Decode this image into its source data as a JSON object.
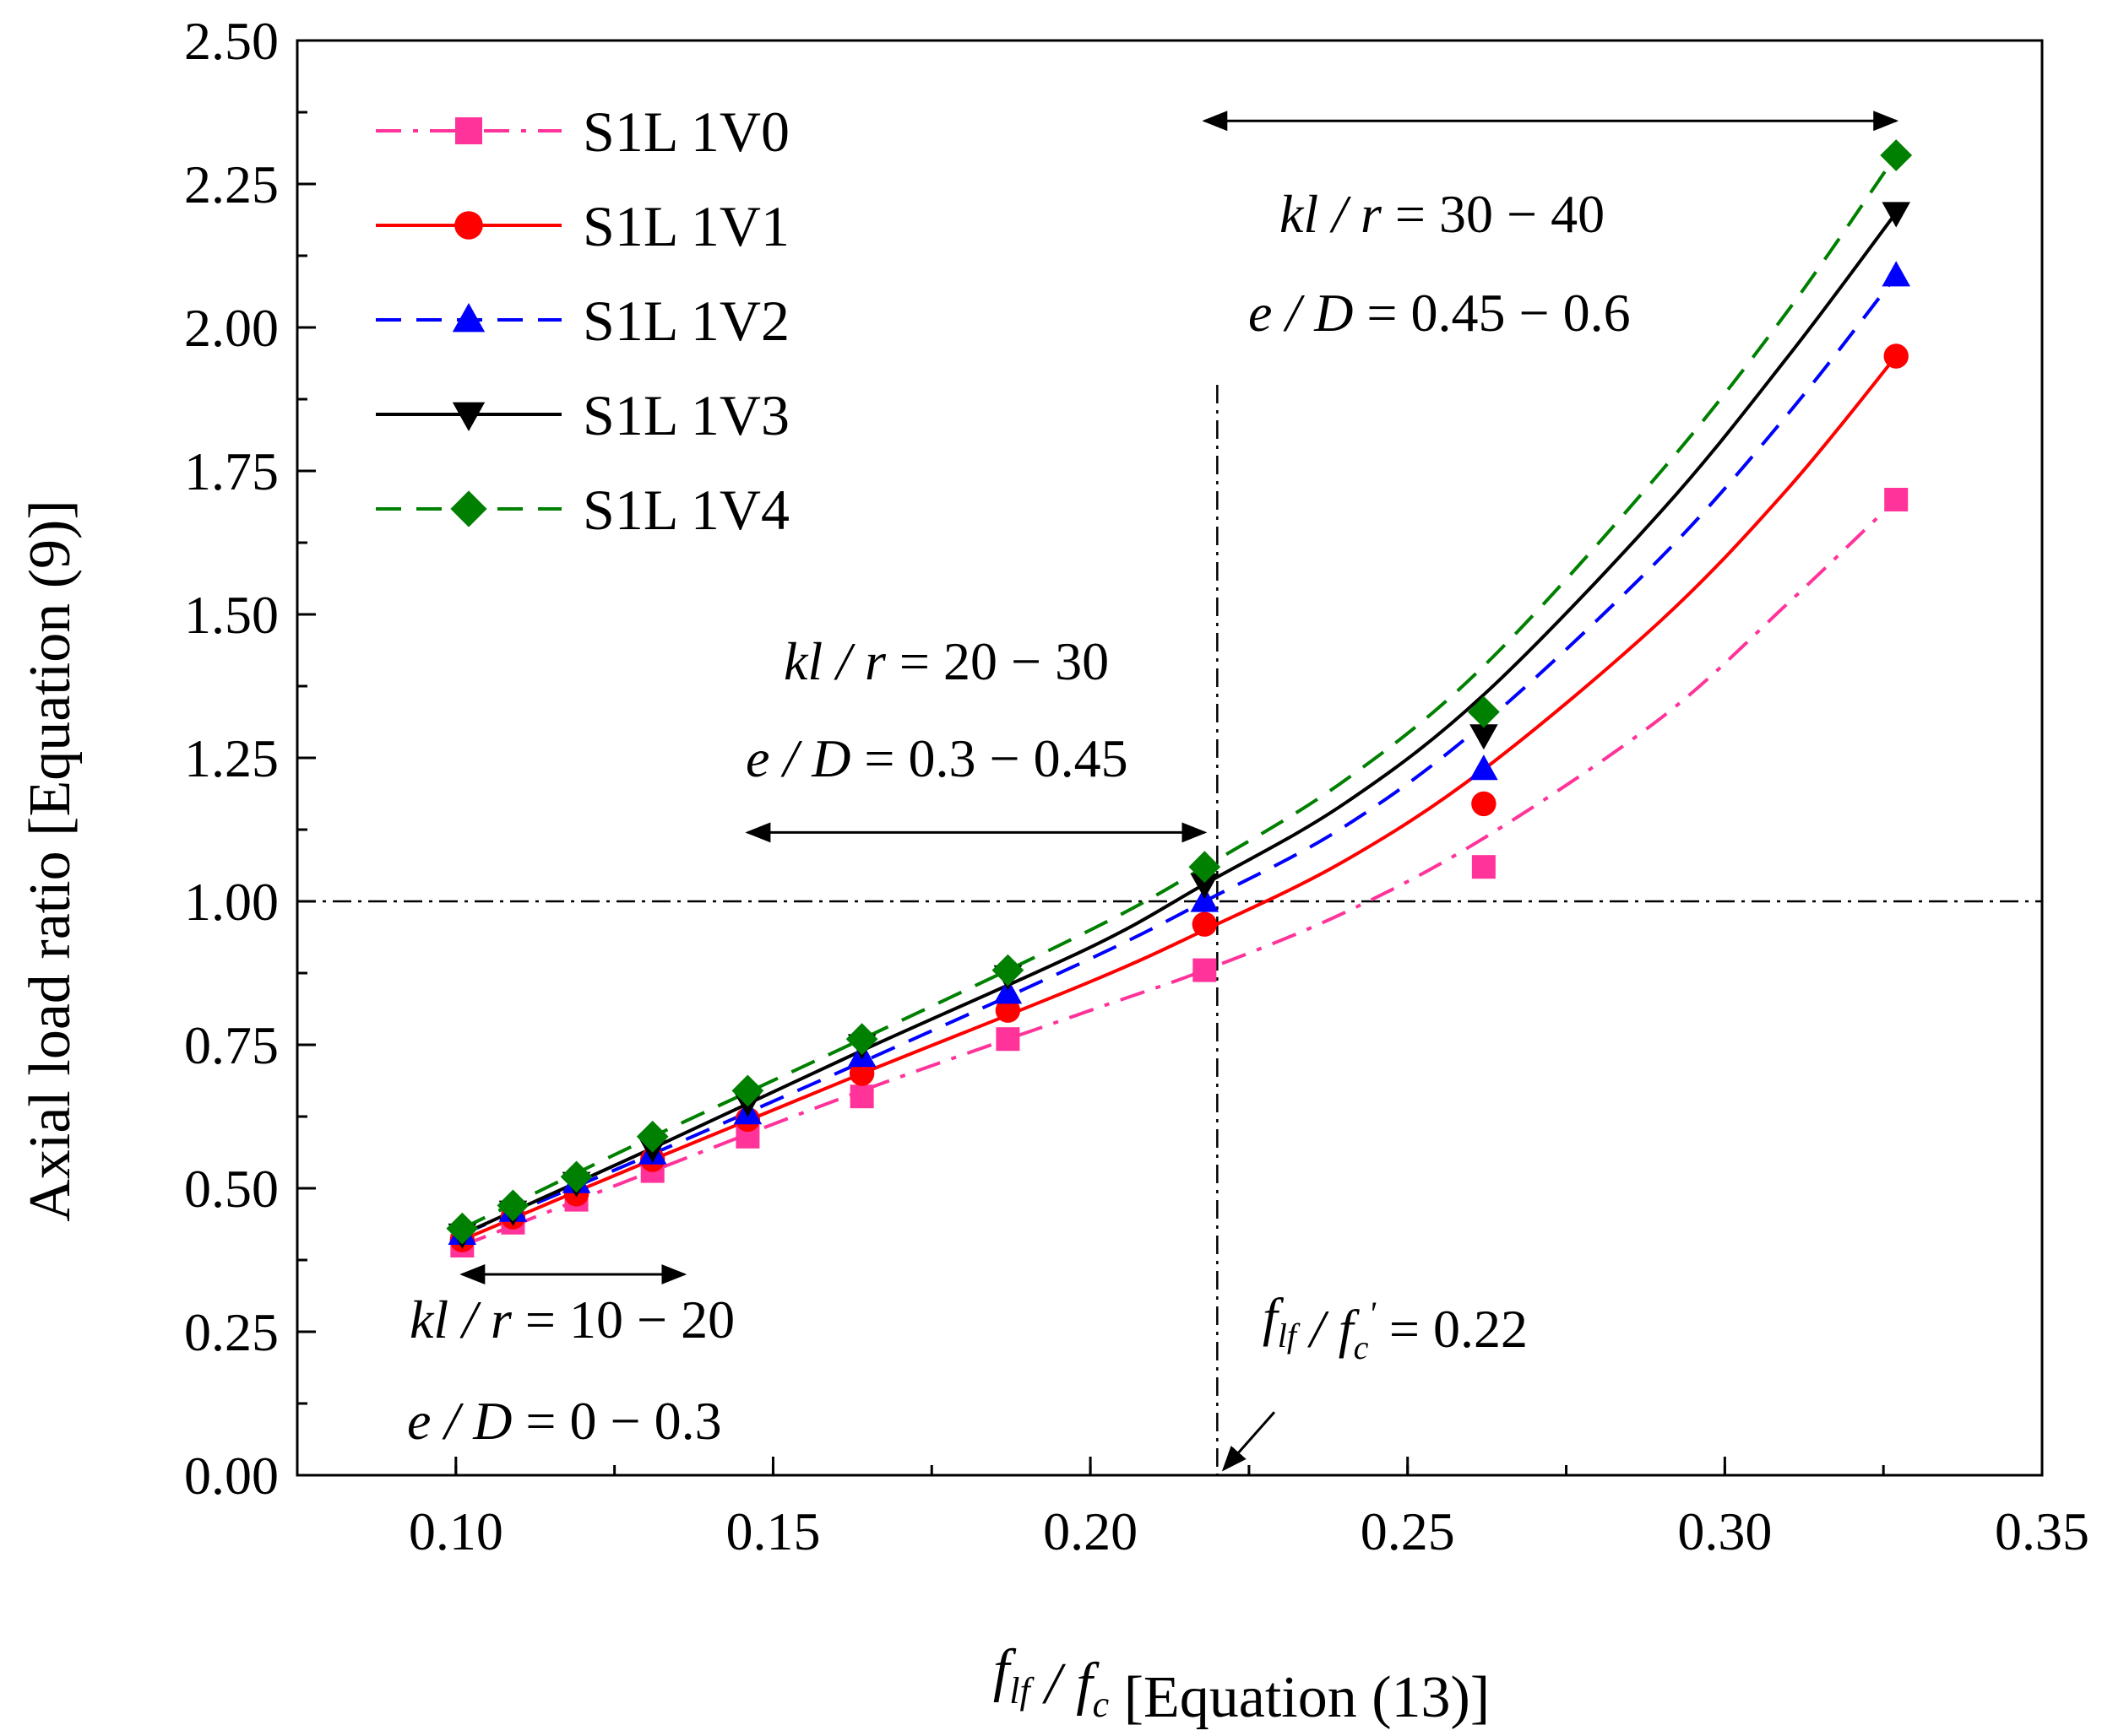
{
  "chart_data": {
    "type": "line",
    "title": "",
    "xlabel": "f_lf / f_c [Equation (13)]",
    "xlabel_parts": {
      "symbol": "f",
      "sub1": "lf",
      "slash": "/",
      "symbol2": "f",
      "sub2": "c",
      "suffix": "[Equation (13)]"
    },
    "ylabel": "Axial load ratio [Equation (9)]",
    "xlim": [
      0.075,
      0.35
    ],
    "ylim": [
      0.0,
      2.5
    ],
    "xticks": [
      "0.10",
      "0.15",
      "0.20",
      "0.25",
      "0.30",
      "0.35"
    ],
    "yticks": [
      "0.00",
      "0.25",
      "0.50",
      "0.75",
      "1.00",
      "1.25",
      "1.50",
      "1.75",
      "2.00",
      "2.25",
      "2.50"
    ],
    "legend_position": "top-left",
    "x": [
      0.101,
      0.109,
      0.119,
      0.131,
      0.146,
      0.164,
      0.187,
      0.218,
      0.262,
      0.327
    ],
    "series": [
      {
        "name": "S1L 1V0",
        "color": "#ff3399",
        "marker": "square",
        "dash": "dashdot",
        "values": [
          0.4,
          0.44,
          0.48,
          0.53,
          0.59,
          0.66,
          0.76,
          0.88,
          1.06,
          1.7
        ],
        "curve": [
          [
            0.101,
            0.4
          ],
          [
            0.131,
            0.53
          ],
          [
            0.164,
            0.67
          ],
          [
            0.2,
            0.81
          ],
          [
            0.218,
            0.88
          ],
          [
            0.24,
            0.98
          ],
          [
            0.262,
            1.11
          ],
          [
            0.29,
            1.32
          ],
          [
            0.31,
            1.52
          ],
          [
            0.327,
            1.7
          ]
        ]
      },
      {
        "name": "S1L 1V1",
        "color": "#ff0000",
        "marker": "circle",
        "dash": "solid",
        "values": [
          0.41,
          0.45,
          0.49,
          0.55,
          0.62,
          0.7,
          0.81,
          0.96,
          1.17,
          1.95
        ],
        "curve": [
          [
            0.101,
            0.41
          ],
          [
            0.131,
            0.55
          ],
          [
            0.164,
            0.7
          ],
          [
            0.2,
            0.86
          ],
          [
            0.218,
            0.95
          ],
          [
            0.24,
            1.07
          ],
          [
            0.262,
            1.23
          ],
          [
            0.29,
            1.49
          ],
          [
            0.31,
            1.72
          ],
          [
            0.327,
            1.95
          ]
        ]
      },
      {
        "name": "S1L 1V2",
        "color": "#0000ff",
        "marker": "triangle-up",
        "dash": "dashed",
        "values": [
          0.42,
          0.46,
          0.51,
          0.56,
          0.63,
          0.73,
          0.84,
          1.0,
          1.23,
          2.09
        ],
        "curve": [
          [
            0.101,
            0.42
          ],
          [
            0.131,
            0.56
          ],
          [
            0.164,
            0.72
          ],
          [
            0.2,
            0.9
          ],
          [
            0.218,
            1.0
          ],
          [
            0.24,
            1.13
          ],
          [
            0.262,
            1.31
          ],
          [
            0.29,
            1.6
          ],
          [
            0.31,
            1.85
          ],
          [
            0.327,
            2.09
          ]
        ]
      },
      {
        "name": "S1L 1V3",
        "color": "#000000",
        "marker": "triangle-down",
        "dash": "solid",
        "values": [
          0.42,
          0.46,
          0.51,
          0.57,
          0.65,
          0.75,
          0.87,
          1.03,
          1.29,
          2.2
        ],
        "curve": [
          [
            0.101,
            0.42
          ],
          [
            0.131,
            0.57
          ],
          [
            0.164,
            0.74
          ],
          [
            0.2,
            0.92
          ],
          [
            0.218,
            1.03
          ],
          [
            0.24,
            1.17
          ],
          [
            0.262,
            1.36
          ],
          [
            0.29,
            1.68
          ],
          [
            0.31,
            1.95
          ],
          [
            0.327,
            2.2
          ]
        ]
      },
      {
        "name": "S1L 1V4",
        "color": "#008000",
        "marker": "diamond",
        "dash": "dashed",
        "values": [
          0.43,
          0.47,
          0.52,
          0.59,
          0.67,
          0.76,
          0.88,
          1.06,
          1.33,
          2.3
        ],
        "curve": [
          [
            0.101,
            0.43
          ],
          [
            0.131,
            0.59
          ],
          [
            0.164,
            0.76
          ],
          [
            0.2,
            0.95
          ],
          [
            0.218,
            1.06
          ],
          [
            0.24,
            1.21
          ],
          [
            0.262,
            1.41
          ],
          [
            0.29,
            1.75
          ],
          [
            0.31,
            2.03
          ],
          [
            0.327,
            2.3
          ]
        ]
      }
    ],
    "reference_lines": {
      "y": 1.0,
      "x": 0.22
    },
    "annotations": {
      "range3": {
        "kl": "kl",
        "r": "r",
        "eq1": "= 30 − 40",
        "e": "e",
        "D": "D",
        "eq2": "= 0.45 − 0.6",
        "arrow_x": [
          0.218,
          0.327
        ],
        "arrow_y": 2.36
      },
      "range2": {
        "kl": "kl",
        "r": "r",
        "eq1": "= 20 − 30",
        "e": "e",
        "D": "D",
        "eq2": "= 0.3 − 0.45",
        "arrow_x": [
          0.146,
          0.218
        ],
        "arrow_y": 1.12
      },
      "range1": {
        "kl": "kl",
        "r": "r",
        "eq1": "= 10 − 20",
        "e": "e",
        "D": "D",
        "eq2": "= 0 − 0.3",
        "arrow_x": [
          0.101,
          0.136
        ],
        "arrow_y": 0.35
      },
      "threshold": {
        "f1": "f",
        "sub1": "lf",
        "f2": "f",
        "sub2": "c",
        "prime": "'",
        "eq": "= 0.22",
        "arrow_from": [
          0.229,
          0.11
        ],
        "arrow_to": [
          0.221,
          0.01
        ]
      }
    }
  }
}
